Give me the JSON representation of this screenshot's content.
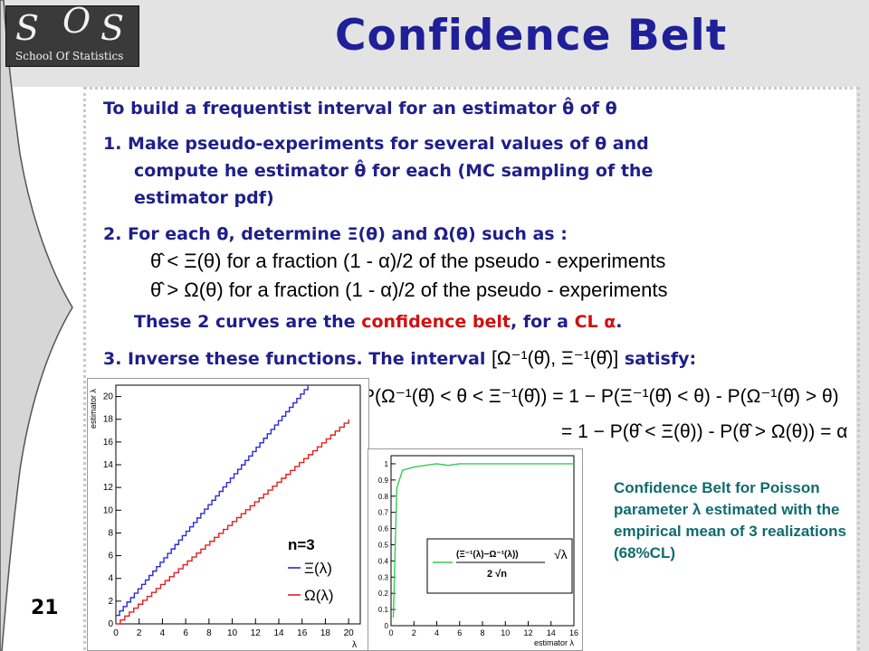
{
  "slide": {
    "title": "Confidence Belt",
    "number": "21",
    "logo": {
      "letter1": "S",
      "letter2": "O",
      "letter3": "S",
      "subtitle": "School Of Statistics"
    }
  },
  "body": {
    "intro": "To build a frequentist interval for an estimator θ̂ of θ",
    "step1_line1": "1.  Make pseudo-experiments for several values of θ and",
    "step1_line2": "compute he estimator θ̂ for each (MC sampling of the",
    "step1_line3": "estimator pdf)",
    "step2": "2.  For each θ, determine Ξ(θ) and Ω(θ) such as :",
    "eq1": "θ̂ < Ξ(θ) for a fraction (1 - α)/2 of the pseudo - experiments",
    "eq2": "θ̂ > Ω(θ) for a fraction (1 - α)/2 of the pseudo - experiments",
    "curves_pre": "These 2 curves are the ",
    "curves_red1": "confidence belt",
    "curves_mid": ", for a ",
    "curves_red2": "CL α",
    "curves_post": ".",
    "step3_pre": "3.  Inverse these functions. The interval",
    "step3_interval": "[Ω⁻¹(θ̂), Ξ⁻¹(θ̂)]",
    "step3_post": "satisfy:",
    "eq3": "P(Ω⁻¹(θ̂) < θ < Ξ⁻¹(θ̂)) = 1 − P(Ξ⁻¹(θ̂) < θ) - P(Ω⁻¹(θ̂) > θ)",
    "eq4": "= 1 − P(θ̂ < Ξ(θ)) - P(θ̂ > Ω(θ)) = α"
  },
  "caption": "Confidence Belt for Poisson parameter λ estimated with the empirical mean of 3 realizations (68%CL)",
  "colors": {
    "title": "#1f1f9a",
    "text": "#1f1f8a",
    "highlight": "#d01010",
    "caption": "#0f6b6e",
    "blue_curve": "#2a2ad8",
    "red_curve": "#e02020",
    "green_curve": "#33cc55"
  },
  "chart_data": [
    {
      "type": "line",
      "xlabel": "λ",
      "ylabel": "estimator λ",
      "xlim": [
        0,
        21
      ],
      "ylim": [
        0,
        21
      ],
      "x_ticks": [
        "0",
        "2",
        "4",
        "6",
        "8",
        "10",
        "12",
        "14",
        "16",
        "18",
        "20"
      ],
      "y_ticks": [
        "0",
        "2",
        "4",
        "6",
        "8",
        "10",
        "12",
        "14",
        "16",
        "18",
        "20"
      ],
      "legend_title": "n=3",
      "series": [
        {
          "name": "Ξ(λ)",
          "x": [
            0,
            16.5
          ],
          "y": [
            0.75,
            21
          ]
        },
        {
          "name": "Ω(λ)",
          "x": [
            0,
            20
          ],
          "y": [
            0,
            18
          ]
        }
      ]
    },
    {
      "type": "line",
      "xlabel": "estimator λ",
      "xlim": [
        0,
        16
      ],
      "ylim": [
        0,
        1.05
      ],
      "x_ticks": [
        "0",
        "2",
        "4",
        "6",
        "8",
        "10",
        "12",
        "14",
        "16"
      ],
      "y_ticks": [
        "0",
        "0.1",
        "0.2",
        "0.3",
        "0.4",
        "0.5",
        "0.6",
        "0.7",
        "0.8",
        "0.9",
        "1"
      ],
      "legend": "(Ξ⁻¹(λ)−Ω⁻¹(λ)) / (2 √n) · √λ",
      "legend_num": "(Ξ⁻¹(λ)−Ω⁻¹(λ))",
      "legend_den": "2 √n",
      "legend_root": "λ",
      "series": [
        {
          "x": [
            0.2,
            0.5,
            1,
            2,
            3,
            4,
            5,
            6,
            7,
            8,
            9,
            10,
            11,
            12,
            13,
            14,
            15,
            16
          ],
          "y": [
            0.05,
            0.85,
            0.96,
            0.98,
            0.99,
            1.0,
            0.99,
            1.0,
            1.0,
            1.0,
            1.0,
            1.0,
            1.0,
            1.0,
            1.0,
            1.0,
            1.0,
            1.0
          ]
        }
      ]
    }
  ]
}
